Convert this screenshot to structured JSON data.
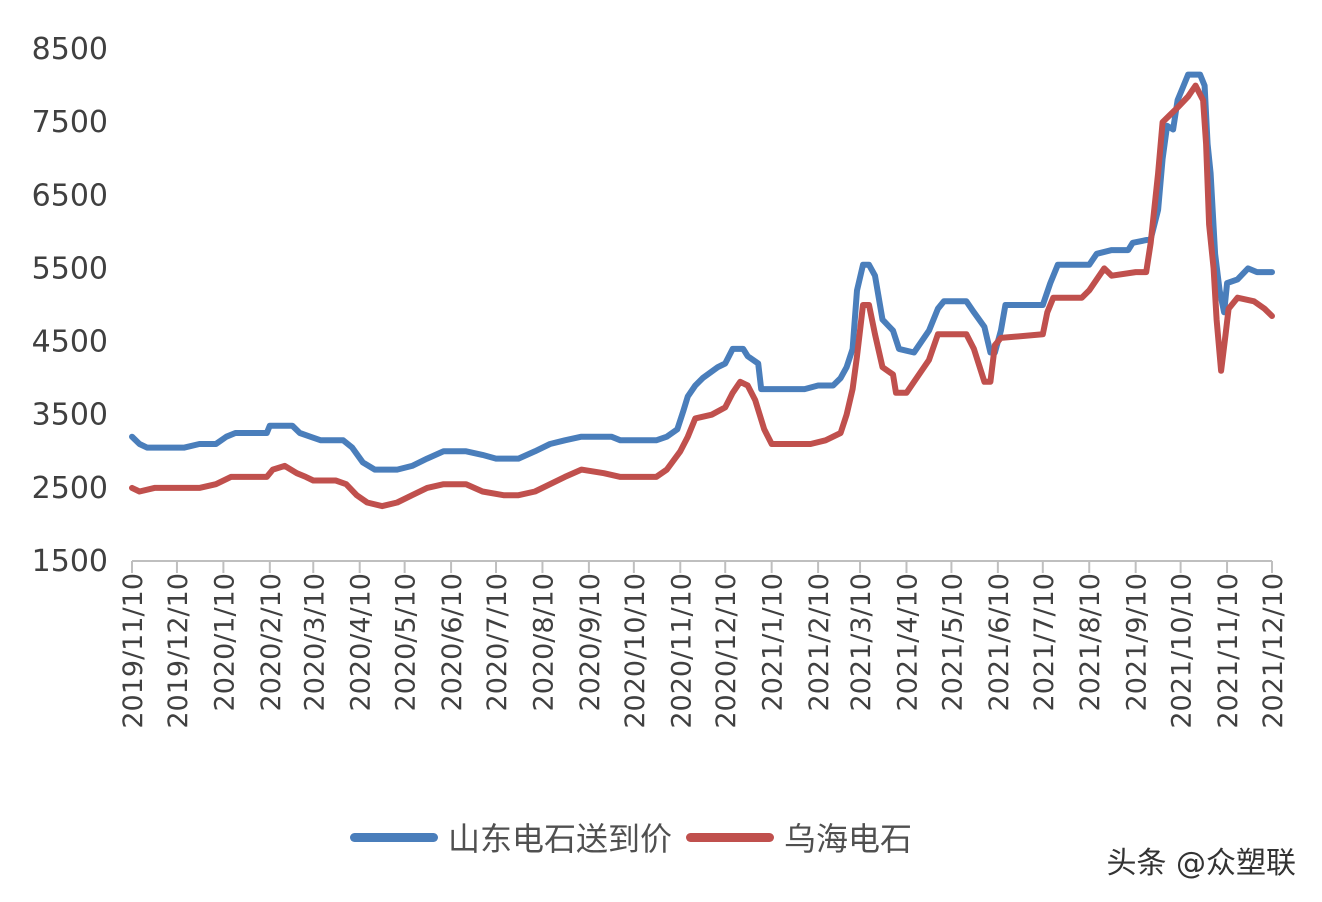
{
  "chart_data": {
    "type": "line",
    "title": "",
    "xlabel": "",
    "ylabel": "",
    "ylim": [
      1500,
      8500
    ],
    "yticks": [
      1500,
      2500,
      3500,
      4500,
      5500,
      6500,
      7500,
      8500
    ],
    "x_ticks": [
      "2019/11/10",
      "2019/12/10",
      "2020/1/10",
      "2020/2/10",
      "2020/3/10",
      "2020/4/10",
      "2020/5/10",
      "2020/6/10",
      "2020/7/10",
      "2020/8/10",
      "2020/9/10",
      "2020/10/10",
      "2020/11/10",
      "2020/12/10",
      "2021/1/10",
      "2021/2/10",
      "2021/3/10",
      "2021/4/10",
      "2021/5/10",
      "2021/6/10",
      "2021/7/10",
      "2021/8/10",
      "2021/9/10",
      "2021/10/10",
      "2021/11/10",
      "2021/12/10"
    ],
    "grid": false,
    "legend_position": "bottom",
    "series": [
      {
        "name": "山东电石送到价",
        "color": "#4a7ebb",
        "points": [
          [
            "2019/11/10",
            3200
          ],
          [
            "2019/11/15",
            3100
          ],
          [
            "2019/11/20",
            3050
          ],
          [
            "2019/12/1",
            3050
          ],
          [
            "2019/12/15",
            3050
          ],
          [
            "2019/12/25",
            3100
          ],
          [
            "2020/1/5",
            3100
          ],
          [
            "2020/1/12",
            3200
          ],
          [
            "2020/1/18",
            3250
          ],
          [
            "2020/2/8",
            3250
          ],
          [
            "2020/2/10",
            3350
          ],
          [
            "2020/2/25",
            3350
          ],
          [
            "2020/3/1",
            3250
          ],
          [
            "2020/3/8",
            3200
          ],
          [
            "2020/3/15",
            3150
          ],
          [
            "2020/3/30",
            3150
          ],
          [
            "2020/4/5",
            3050
          ],
          [
            "2020/4/12",
            2850
          ],
          [
            "2020/4/20",
            2750
          ],
          [
            "2020/5/5",
            2750
          ],
          [
            "2020/5/15",
            2800
          ],
          [
            "2020/5/25",
            2900
          ],
          [
            "2020/6/5",
            3000
          ],
          [
            "2020/6/20",
            3000
          ],
          [
            "2020/7/1",
            2950
          ],
          [
            "2020/7/10",
            2900
          ],
          [
            "2020/7/25",
            2900
          ],
          [
            "2020/8/5",
            3000
          ],
          [
            "2020/8/15",
            3100
          ],
          [
            "2020/8/25",
            3150
          ],
          [
            "2020/9/5",
            3200
          ],
          [
            "2020/9/25",
            3200
          ],
          [
            "2020/10/1",
            3150
          ],
          [
            "2020/10/25",
            3150
          ],
          [
            "2020/11/1",
            3200
          ],
          [
            "2020/11/8",
            3300
          ],
          [
            "2020/11/12",
            3550
          ],
          [
            "2020/11/15",
            3750
          ],
          [
            "2020/11/20",
            3900
          ],
          [
            "2020/11/25",
            4000
          ],
          [
            "2020/12/5",
            4150
          ],
          [
            "2020/12/10",
            4200
          ],
          [
            "2020/12/15",
            4400
          ],
          [
            "2020/12/22",
            4400
          ],
          [
            "2020/12/25",
            4300
          ],
          [
            "2021/1/1",
            4200
          ],
          [
            "2021/1/3",
            3850
          ],
          [
            "2021/1/20",
            3850
          ],
          [
            "2021/2/1",
            3850
          ],
          [
            "2021/2/10",
            3900
          ],
          [
            "2021/2/20",
            3900
          ],
          [
            "2021/2/25",
            4000
          ],
          [
            "2021/3/1",
            4150
          ],
          [
            "2021/3/5",
            4400
          ],
          [
            "2021/3/8",
            5200
          ],
          [
            "2021/3/12",
            5550
          ],
          [
            "2021/3/16",
            5550
          ],
          [
            "2021/3/20",
            5400
          ],
          [
            "2021/3/25",
            4800
          ],
          [
            "2021/4/1",
            4650
          ],
          [
            "2021/4/5",
            4400
          ],
          [
            "2021/4/15",
            4350
          ],
          [
            "2021/4/25",
            4650
          ],
          [
            "2021/5/1",
            4950
          ],
          [
            "2021/5/5",
            5050
          ],
          [
            "2021/5/20",
            5050
          ],
          [
            "2021/5/25",
            4900
          ],
          [
            "2021/6/1",
            4700
          ],
          [
            "2021/6/5",
            4350
          ],
          [
            "2021/6/8",
            4350
          ],
          [
            "2021/6/12",
            4650
          ],
          [
            "2021/6/15",
            5000
          ],
          [
            "2021/7/10",
            5000
          ],
          [
            "2021/7/15",
            5300
          ],
          [
            "2021/7/20",
            5550
          ],
          [
            "2021/8/10",
            5550
          ],
          [
            "2021/8/15",
            5700
          ],
          [
            "2021/8/25",
            5750
          ],
          [
            "2021/9/5",
            5750
          ],
          [
            "2021/9/8",
            5850
          ],
          [
            "2021/9/20",
            5900
          ],
          [
            "2021/9/25",
            6300
          ],
          [
            "2021/9/28",
            7000
          ],
          [
            "2021/10/1",
            7450
          ],
          [
            "2021/10/5",
            7400
          ],
          [
            "2021/10/8",
            7800
          ],
          [
            "2021/10/12",
            8000
          ],
          [
            "2021/10/15",
            8150
          ],
          [
            "2021/10/23",
            8150
          ],
          [
            "2021/10/26",
            8000
          ],
          [
            "2021/10/28",
            7200
          ],
          [
            "2021/10/30",
            6800
          ],
          [
            "2021/11/2",
            5700
          ],
          [
            "2021/11/5",
            5200
          ],
          [
            "2021/11/8",
            4900
          ],
          [
            "2021/11/10",
            5300
          ],
          [
            "2021/11/17",
            5350
          ],
          [
            "2021/11/24",
            5500
          ],
          [
            "2021/11/30",
            5450
          ],
          [
            "2021/12/10",
            5450
          ]
        ]
      },
      {
        "name": "乌海电石",
        "color": "#c0504d",
        "points": [
          [
            "2019/11/10",
            2500
          ],
          [
            "2019/11/15",
            2450
          ],
          [
            "2019/11/25",
            2500
          ],
          [
            "2019/12/15",
            2500
          ],
          [
            "2019/12/25",
            2500
          ],
          [
            "2020/1/5",
            2550
          ],
          [
            "2020/1/15",
            2650
          ],
          [
            "2020/2/8",
            2650
          ],
          [
            "2020/2/12",
            2750
          ],
          [
            "2020/2/20",
            2800
          ],
          [
            "2020/2/28",
            2700
          ],
          [
            "2020/3/5",
            2650
          ],
          [
            "2020/3/10",
            2600
          ],
          [
            "2020/3/25",
            2600
          ],
          [
            "2020/4/1",
            2550
          ],
          [
            "2020/4/8",
            2400
          ],
          [
            "2020/4/15",
            2300
          ],
          [
            "2020/4/25",
            2250
          ],
          [
            "2020/5/5",
            2300
          ],
          [
            "2020/5/15",
            2400
          ],
          [
            "2020/5/25",
            2500
          ],
          [
            "2020/6/5",
            2550
          ],
          [
            "2020/6/20",
            2550
          ],
          [
            "2020/7/1",
            2450
          ],
          [
            "2020/7/15",
            2400
          ],
          [
            "2020/7/25",
            2400
          ],
          [
            "2020/8/5",
            2450
          ],
          [
            "2020/8/15",
            2550
          ],
          [
            "2020/8/25",
            2650
          ],
          [
            "2020/9/5",
            2750
          ],
          [
            "2020/9/20",
            2700
          ],
          [
            "2020/10/1",
            2650
          ],
          [
            "2020/10/25",
            2650
          ],
          [
            "2020/11/1",
            2750
          ],
          [
            "2020/11/10",
            3000
          ],
          [
            "2020/11/15",
            3200
          ],
          [
            "2020/11/20",
            3450
          ],
          [
            "2020/12/1",
            3500
          ],
          [
            "2020/12/10",
            3600
          ],
          [
            "2020/12/15",
            3800
          ],
          [
            "2020/12/20",
            3950
          ],
          [
            "2020/12/25",
            3900
          ],
          [
            "2020/12/30",
            3700
          ],
          [
            "2021/1/5",
            3300
          ],
          [
            "2021/1/10",
            3100
          ],
          [
            "2021/1/20",
            3100
          ],
          [
            "2021/2/5",
            3100
          ],
          [
            "2021/2/15",
            3150
          ],
          [
            "2021/2/25",
            3250
          ],
          [
            "2021/3/1",
            3500
          ],
          [
            "2021/3/5",
            3850
          ],
          [
            "2021/3/8",
            4300
          ],
          [
            "2021/3/12",
            5000
          ],
          [
            "2021/3/16",
            5000
          ],
          [
            "2021/3/20",
            4600
          ],
          [
            "2021/3/25",
            4150
          ],
          [
            "2021/4/1",
            4050
          ],
          [
            "2021/4/3",
            3800
          ],
          [
            "2021/4/10",
            3800
          ],
          [
            "2021/4/15",
            3950
          ],
          [
            "2021/4/25",
            4250
          ],
          [
            "2021/5/1",
            4600
          ],
          [
            "2021/5/20",
            4600
          ],
          [
            "2021/5/25",
            4400
          ],
          [
            "2021/6/1",
            3950
          ],
          [
            "2021/6/5",
            3950
          ],
          [
            "2021/6/8",
            4450
          ],
          [
            "2021/6/12",
            4550
          ],
          [
            "2021/7/10",
            4600
          ],
          [
            "2021/7/13",
            4900
          ],
          [
            "2021/7/17",
            5100
          ],
          [
            "2021/8/5",
            5100
          ],
          [
            "2021/8/10",
            5200
          ],
          [
            "2021/8/20",
            5500
          ],
          [
            "2021/8/25",
            5400
          ],
          [
            "2021/9/10",
            5450
          ],
          [
            "2021/9/17",
            5450
          ],
          [
            "2021/9/20",
            5850
          ],
          [
            "2021/9/25",
            6800
          ],
          [
            "2021/9/28",
            7500
          ],
          [
            "2021/10/3",
            7600
          ],
          [
            "2021/10/8",
            7700
          ],
          [
            "2021/10/15",
            7850
          ],
          [
            "2021/10/20",
            8000
          ],
          [
            "2021/10/25",
            7800
          ],
          [
            "2021/10/27",
            7200
          ],
          [
            "2021/10/29",
            6100
          ],
          [
            "2021/11/1",
            5500
          ],
          [
            "2021/11/3",
            4800
          ],
          [
            "2021/11/6",
            4100
          ],
          [
            "2021/11/9",
            4600
          ],
          [
            "2021/11/11",
            4950
          ],
          [
            "2021/11/17",
            5100
          ],
          [
            "2021/11/28",
            5050
          ],
          [
            "2021/12/5",
            4950
          ],
          [
            "2021/12/10",
            4850
          ]
        ]
      }
    ]
  },
  "watermark": "头条 @众塑联"
}
